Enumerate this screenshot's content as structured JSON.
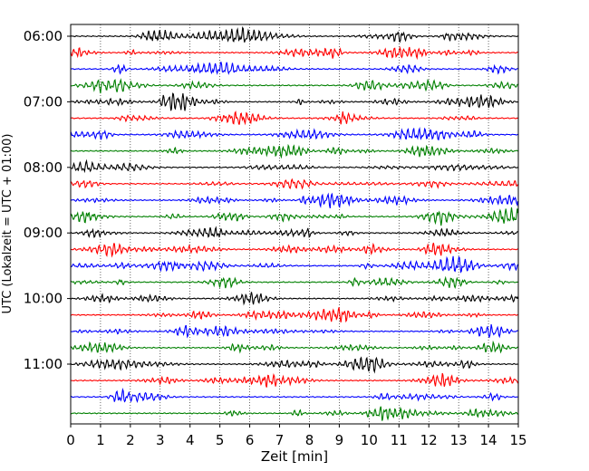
{
  "chart_data": {
    "type": "line",
    "title": "",
    "xlabel": "Zeit  [min]",
    "ylabel": "UTC (Lokalzeit = UTC + 01:00)",
    "xlim": [
      0,
      15
    ],
    "x_ticks": [
      0,
      1,
      2,
      3,
      4,
      5,
      6,
      7,
      8,
      9,
      10,
      11,
      12,
      13,
      14,
      15
    ],
    "x_tick_labels": [
      "0",
      "1",
      "2",
      "3",
      "4",
      "5",
      "6",
      "7",
      "8",
      "9",
      "10",
      "11",
      "12",
      "13",
      "14",
      "15"
    ],
    "y_tick_labels": [
      "06:00",
      "07:00",
      "08:00",
      "09:00",
      "10:00",
      "11:00"
    ],
    "grid": "vertical dotted lines at each minute",
    "legend": "none",
    "trace_colors": [
      "#000000",
      "#ff0000",
      "#0000ff",
      "#008000"
    ],
    "trace_color_cycle": "black, red, blue, green",
    "trace_interval_minutes": 15,
    "traces": [
      {
        "start": "06:00",
        "color": "#000000"
      },
      {
        "start": "06:15",
        "color": "#ff0000"
      },
      {
        "start": "06:30",
        "color": "#0000ff"
      },
      {
        "start": "06:45",
        "color": "#008000"
      },
      {
        "start": "07:00",
        "color": "#000000"
      },
      {
        "start": "07:15",
        "color": "#ff0000"
      },
      {
        "start": "07:30",
        "color": "#0000ff"
      },
      {
        "start": "07:45",
        "color": "#008000"
      },
      {
        "start": "08:00",
        "color": "#000000"
      },
      {
        "start": "08:15",
        "color": "#ff0000"
      },
      {
        "start": "08:30",
        "color": "#0000ff"
      },
      {
        "start": "08:45",
        "color": "#008000"
      },
      {
        "start": "09:00",
        "color": "#000000"
      },
      {
        "start": "09:15",
        "color": "#ff0000"
      },
      {
        "start": "09:30",
        "color": "#0000ff"
      },
      {
        "start": "09:45",
        "color": "#008000"
      },
      {
        "start": "10:00",
        "color": "#000000"
      },
      {
        "start": "10:15",
        "color": "#ff0000"
      },
      {
        "start": "10:30",
        "color": "#0000ff"
      },
      {
        "start": "10:45",
        "color": "#008000"
      },
      {
        "start": "11:00",
        "color": "#000000"
      },
      {
        "start": "11:15",
        "color": "#ff0000"
      },
      {
        "start": "11:30",
        "color": "#0000ff"
      },
      {
        "start": "11:45",
        "color": "#008000"
      }
    ]
  }
}
